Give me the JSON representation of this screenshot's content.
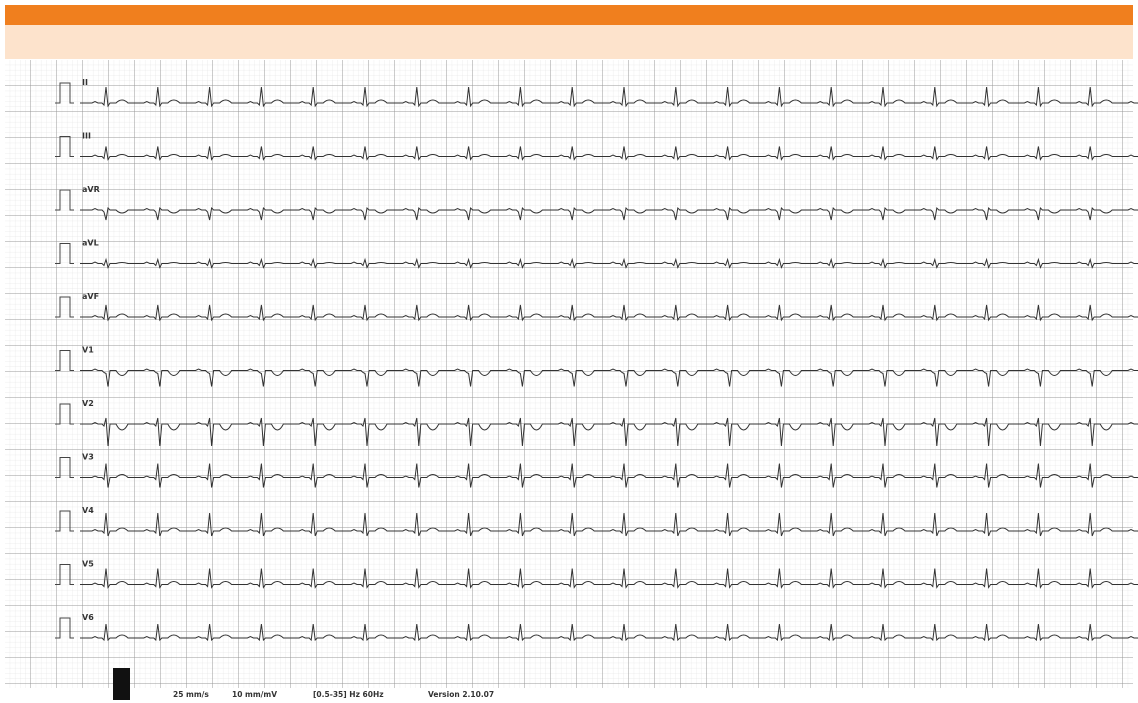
{
  "leads": [
    "II",
    "III",
    "aVR",
    "aVL",
    "aVF",
    "V1",
    "V2",
    "V3",
    "V4",
    "V5",
    "V6"
  ],
  "footer": {
    "speed": "25 mm/s",
    "gain": "10 mm/mV",
    "filter": "[0.5-35] Hz 60Hz",
    "version": "Version 2.10.07"
  }
}
